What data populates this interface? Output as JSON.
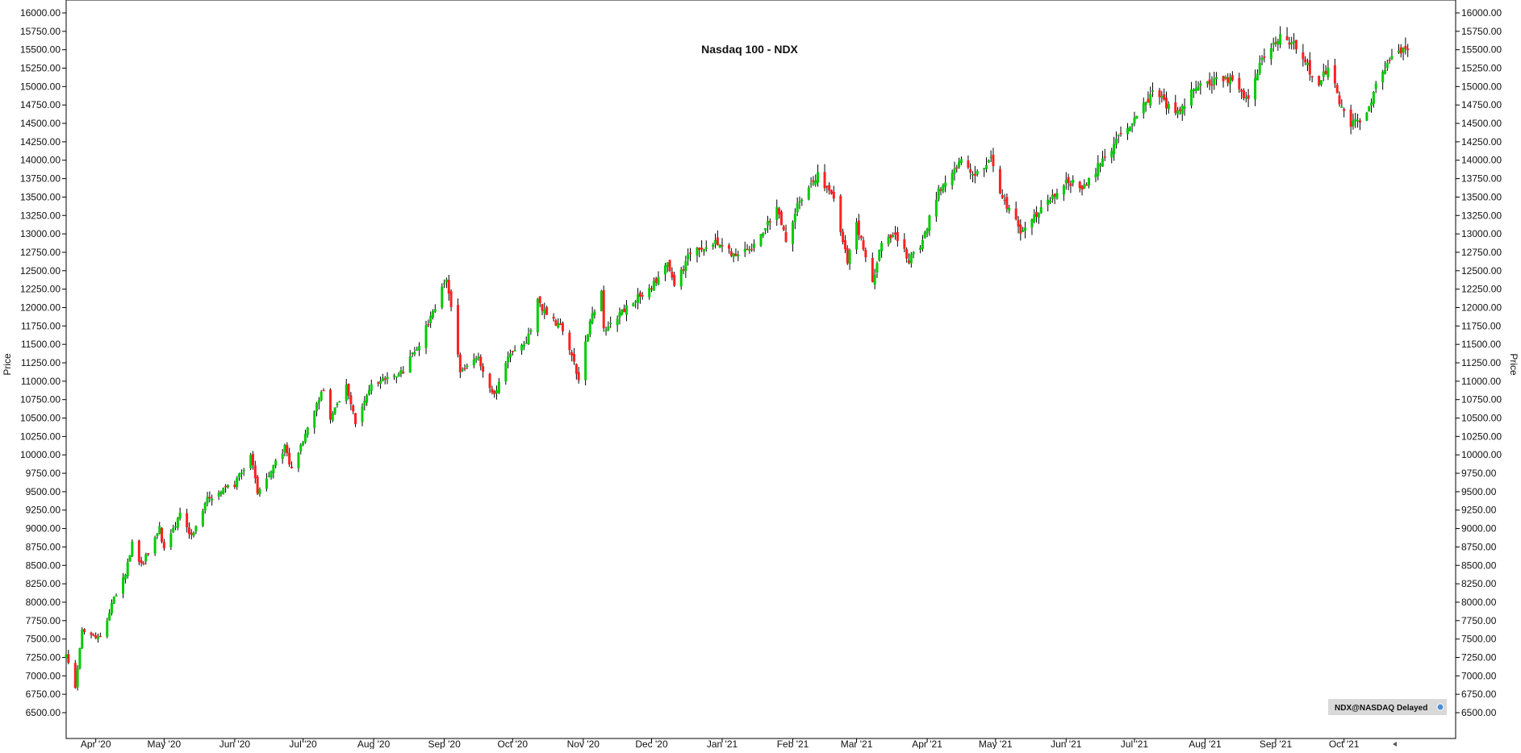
{
  "chart_data": {
    "type": "candlestick",
    "title": "Nasdaq 100 - NDX",
    "ylabel": "Price",
    "ylim": [
      6500,
      16000
    ],
    "y_ticks": [
      "16000.00",
      "15750.00",
      "15500.00",
      "15250.00",
      "15000.00",
      "14750.00",
      "14500.00",
      "14250.00",
      "14000.00",
      "13750.00",
      "13500.00",
      "13250.00",
      "13000.00",
      "12750.00",
      "12500.00",
      "12250.00",
      "12000.00",
      "11750.00",
      "11500.00",
      "11250.00",
      "11000.00",
      "10750.00",
      "10500.00",
      "10250.00",
      "10000.00",
      "9750.00",
      "9500.00",
      "9250.00",
      "9000.00",
      "8750.00",
      "8500.00",
      "8250.00",
      "8000.00",
      "7750.00",
      "7500.00",
      "7250.00",
      "7000.00",
      "6750.00",
      "6500.00"
    ],
    "x_ticks": [
      "Apr '20",
      "May '20",
      "Jun '20",
      "Jul '20",
      "Aug '20",
      "Sep '20",
      "Oct '20",
      "Nov '20",
      "Dec '20",
      "Jan '21",
      "Feb '21",
      "Mar '21",
      "Apr '21",
      "May '21",
      "Jun '21",
      "Jul '21",
      "Aug '21",
      "Sep '21",
      "Oct '21"
    ],
    "x_tick_days": [
      13,
      43,
      74,
      104,
      135,
      166,
      196,
      227,
      257,
      288,
      319,
      347,
      378,
      408,
      439,
      469,
      500,
      531,
      561
    ],
    "x_range_days": [
      0,
      610
    ],
    "date_anchor": "2020-03-19",
    "up_color": "#00cc00",
    "down_color": "#ff2020",
    "wick_color": "#000000",
    "grid": false,
    "close_path": [
      [
        "2020-03-19",
        7300
      ],
      [
        "2020-03-23",
        6860
      ],
      [
        "2020-03-26",
        7600
      ],
      [
        "2020-03-31",
        7550
      ],
      [
        "2020-04-03",
        7500
      ],
      [
        "2020-04-09",
        8050
      ],
      [
        "2020-04-14",
        8400
      ],
      [
        "2020-04-17",
        8800
      ],
      [
        "2020-04-21",
        8500
      ],
      [
        "2020-04-29",
        9000
      ],
      [
        "2020-05-01",
        8700
      ],
      [
        "2020-05-08",
        9200
      ],
      [
        "2020-05-13",
        8900
      ],
      [
        "2020-05-20",
        9400
      ],
      [
        "2020-06-01",
        9600
      ],
      [
        "2020-06-08",
        10000
      ],
      [
        "2020-06-11",
        9500
      ],
      [
        "2020-06-23",
        10100
      ],
      [
        "2020-06-26",
        9800
      ],
      [
        "2020-07-06",
        10600
      ],
      [
        "2020-07-10",
        10900
      ],
      [
        "2020-07-13",
        10500
      ],
      [
        "2020-07-20",
        10950
      ],
      [
        "2020-07-24",
        10450
      ],
      [
        "2020-07-31",
        10950
      ],
      [
        "2020-08-14",
        11150
      ],
      [
        "2020-08-21",
        11500
      ],
      [
        "2020-09-02",
        12400
      ],
      [
        "2020-09-08",
        11100
      ],
      [
        "2020-09-16",
        11300
      ],
      [
        "2020-09-23",
        10800
      ],
      [
        "2020-09-30",
        11400
      ],
      [
        "2020-10-07",
        11500
      ],
      [
        "2020-10-12",
        12100
      ],
      [
        "2020-10-14",
        12000
      ],
      [
        "2020-10-23",
        11700
      ],
      [
        "2020-10-30",
        11050
      ],
      [
        "2020-11-04",
        11800
      ],
      [
        "2020-11-09",
        12200
      ],
      [
        "2020-11-10",
        11700
      ],
      [
        "2020-11-20",
        12000
      ],
      [
        "2020-12-01",
        12300
      ],
      [
        "2020-12-08",
        12600
      ],
      [
        "2020-12-11",
        12300
      ],
      [
        "2020-12-18",
        12750
      ],
      [
        "2020-12-31",
        12900
      ],
      [
        "2021-01-06",
        12700
      ],
      [
        "2021-01-14",
        12800
      ],
      [
        "2021-01-25",
        13350
      ],
      [
        "2021-01-29",
        12900
      ],
      [
        "2021-02-03",
        13400
      ],
      [
        "2021-02-12",
        13800
      ],
      [
        "2021-02-19",
        13500
      ],
      [
        "2021-02-25",
        12650
      ],
      [
        "2021-03-01",
        13150
      ],
      [
        "2021-03-08",
        12300
      ],
      [
        "2021-03-12",
        12900
      ],
      [
        "2021-03-19",
        12950
      ],
      [
        "2021-03-24",
        12650
      ],
      [
        "2021-03-30",
        12900
      ],
      [
        "2021-04-06",
        13600
      ],
      [
        "2021-04-16",
        14000
      ],
      [
        "2021-04-22",
        13800
      ],
      [
        "2021-04-29",
        14000
      ],
      [
        "2021-05-04",
        13500
      ],
      [
        "2021-05-12",
        13050
      ],
      [
        "2021-05-21",
        13350
      ],
      [
        "2021-06-01",
        13700
      ],
      [
        "2021-06-09",
        13650
      ],
      [
        "2021-06-24",
        14300
      ],
      [
        "2021-07-09",
        14900
      ],
      [
        "2021-07-14",
        14800
      ],
      [
        "2021-07-19",
        14600
      ],
      [
        "2021-07-29",
        15050
      ],
      [
        "2021-08-12",
        15100
      ],
      [
        "2021-08-19",
        14800
      ],
      [
        "2021-08-25",
        15300
      ],
      [
        "2021-09-03",
        15650
      ],
      [
        "2021-09-10",
        15550
      ],
      [
        "2021-09-20",
        15000
      ],
      [
        "2021-09-24",
        15300
      ],
      [
        "2021-09-30",
        14700
      ],
      [
        "2021-10-04",
        14500
      ],
      [
        "2021-10-11",
        14600
      ],
      [
        "2021-10-14",
        14950
      ],
      [
        "2021-10-21",
        15400
      ],
      [
        "2021-10-29",
        15500
      ]
    ]
  },
  "source_badge": {
    "text": "NDX@NASDAQ Delayed"
  }
}
